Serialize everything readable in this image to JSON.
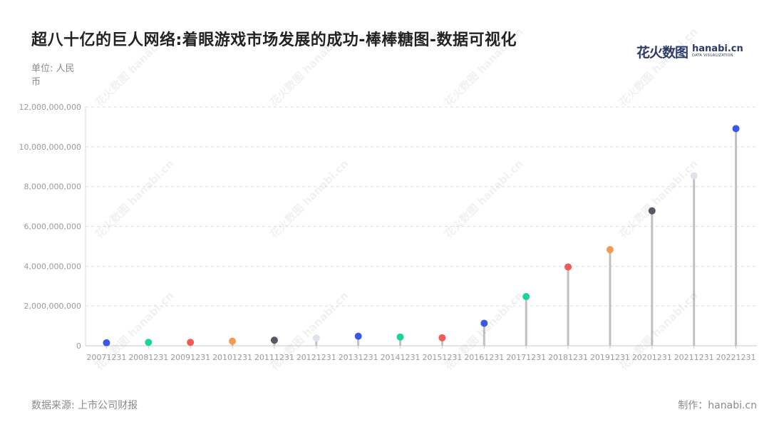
{
  "title": "超八十亿的巨人网络:着眼游戏市场发展的成功-棒棒糖图-数据可视化",
  "unit_label": "单位: 人民币",
  "source_label": "数据来源: 上市公司财报",
  "credit_label": "制作：hanabi.cn",
  "logo": {
    "cn": "花火数图",
    "en": "hanabi.cn",
    "sub": "DATA VISUALIZATION"
  },
  "watermark": "花火数图 hanabi.cn",
  "chart_data": {
    "type": "lollipop",
    "categories": [
      "20071231",
      "20081231",
      "20091231",
      "20101231",
      "20111231",
      "20121231",
      "20131231",
      "20141231",
      "20151231",
      "20161231",
      "20171231",
      "20181231",
      "20191231",
      "20201231",
      "20211231",
      "20221231"
    ],
    "values": [
      150000000,
      170000000,
      170000000,
      230000000,
      280000000,
      390000000,
      480000000,
      440000000,
      400000000,
      1130000000,
      2470000000,
      3960000000,
      4830000000,
      6780000000,
      8540000000,
      10910000000
    ],
    "colors": [
      "#3b57e4",
      "#19d49b",
      "#f25a55",
      "#f59a52",
      "#565763",
      "#dde2ee",
      "#3b57e4",
      "#19d49b",
      "#f25a55",
      "#3b57e4",
      "#19d49b",
      "#f25a55",
      "#f59a52",
      "#565763",
      "#dde2ee",
      "#3b57e4"
    ],
    "y_ticks": [
      "0",
      "2,000,000,000",
      "4,000,000,000",
      "6,000,000,000",
      "8,000,000,000",
      "10,000,000,000",
      "12,000,000,000"
    ],
    "ylim": [
      0,
      12000000000
    ],
    "grid": true,
    "stem_color": "#c0c0c0"
  }
}
